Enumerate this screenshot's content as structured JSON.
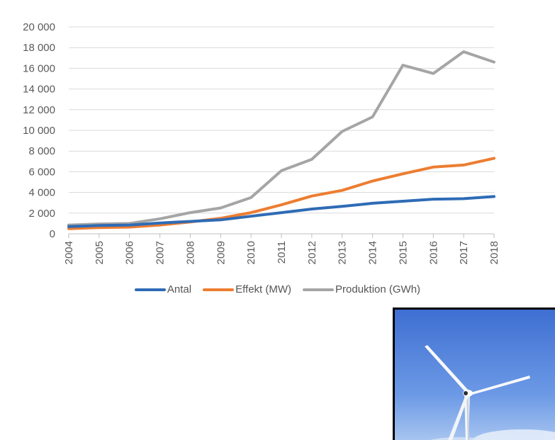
{
  "chart_data": {
    "type": "line",
    "title": "",
    "xlabel": "",
    "ylabel": "",
    "x": [
      "2004",
      "2005",
      "2006",
      "2007",
      "2008",
      "2009",
      "2010",
      "2011",
      "2012",
      "2013",
      "2014",
      "2015",
      "2016",
      "2017",
      "2018"
    ],
    "ylim": [
      0,
      20000
    ],
    "yticks": [
      0,
      2000,
      4000,
      6000,
      8000,
      10000,
      12000,
      14000,
      16000,
      18000,
      20000
    ],
    "ytick_labels": [
      "0",
      "2 000",
      "4 000",
      "6 000",
      "8 000",
      "10 000",
      "12 000",
      "14 000",
      "16 000",
      "18 000",
      "20 000"
    ],
    "grid": true,
    "legend": "bottom",
    "series": [
      {
        "name": "Antal",
        "color": "#2E6BB5",
        "values": [
          700,
          800,
          850,
          1050,
          1200,
          1350,
          1700,
          2050,
          2400,
          2650,
          2950,
          3150,
          3350,
          3400,
          3600
        ]
      },
      {
        "name": "Effekt (MW)",
        "color": "#ED7D31",
        "values": [
          500,
          600,
          650,
          850,
          1150,
          1500,
          2050,
          2800,
          3650,
          4200,
          5100,
          5800,
          6450,
          6650,
          7300
        ]
      },
      {
        "name": "Produktion (GWh)",
        "color": "#A5A5A5",
        "values": [
          850,
          950,
          1000,
          1450,
          2050,
          2500,
          3500,
          6100,
          7200,
          9900,
          11300,
          16300,
          15500,
          17600,
          16600
        ]
      }
    ]
  },
  "photo": {
    "sky_colors": [
      "#3E6FD2",
      "#6D9AE6",
      "#A9C6F0"
    ],
    "subject": "wind-turbine"
  }
}
